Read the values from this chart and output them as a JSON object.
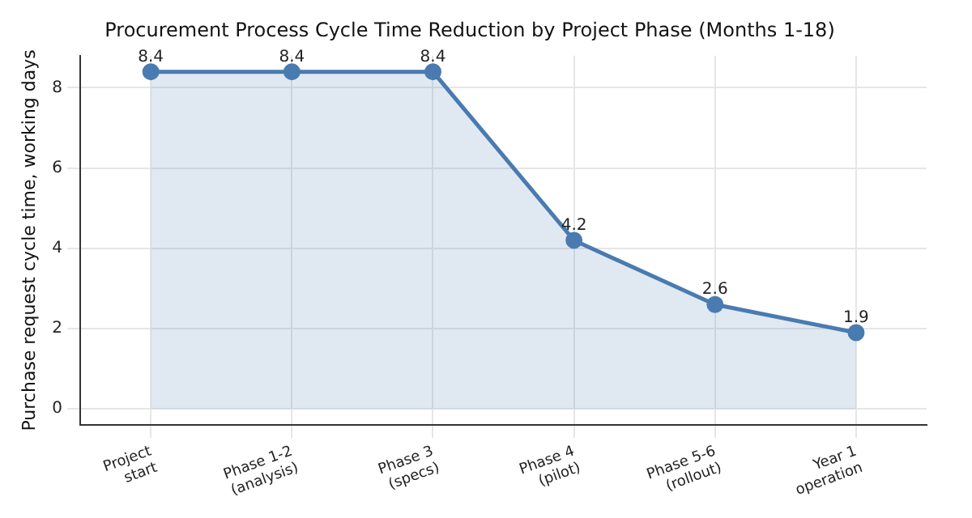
{
  "chart_data": {
    "type": "area",
    "title": "Procurement Process Cycle Time Reduction by Project Phase (Months 1-18)",
    "ylabel": "Purchase request cycle time, working days",
    "categories": [
      "Project\nstart",
      "Phase 1-2\n(analysis)",
      "Phase 3\n(specs)",
      "Phase 4\n(pilot)",
      "Phase 5-6\n(rollout)",
      "Year 1\noperation"
    ],
    "series": [
      {
        "color": "#4a7bb0",
        "values": [
          8.4,
          8.4,
          8.4,
          4.2,
          2.6,
          1.9
        ]
      }
    ],
    "ylim": [
      -0.4,
      8.8
    ],
    "yticks": [
      0,
      2,
      4,
      6,
      8
    ],
    "grid": true,
    "legend": false,
    "marker": "circle",
    "line_style": "solid",
    "data_labels": true
  }
}
